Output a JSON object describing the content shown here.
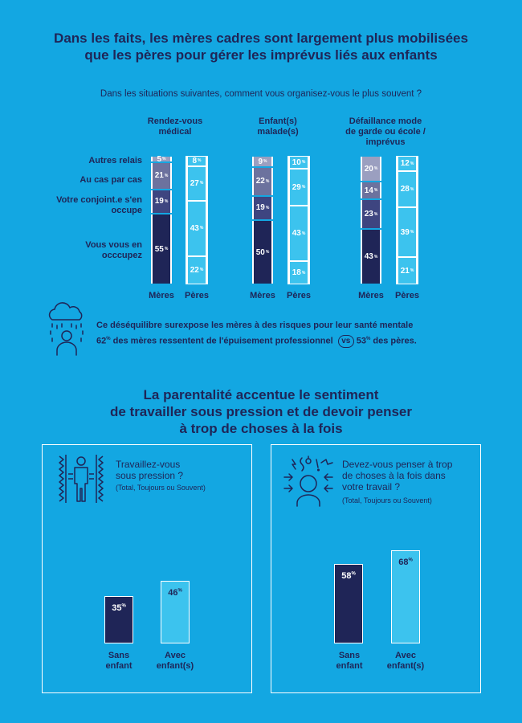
{
  "header": {
    "title_line1": "Dans les faits, les mères cadres sont largement plus mobilisées",
    "title_line2": "que les pères pour gérer les imprévus liés aux enfants",
    "subtitle": "Dans les situations suivantes, comment vous organisez-vous le plus souvent ?"
  },
  "colors": {
    "background": "#13a7e2",
    "navy": "#1f2557",
    "mothers_segments": [
      "#1f2557",
      "#3e4580",
      "#6c729e",
      "#9b9fc0"
    ],
    "fathers_segments": [
      "#3cc3ee",
      "#3cc3ee",
      "#3cc3ee",
      "#3cc3ee"
    ],
    "white": "#ffffff"
  },
  "chart_data": [
    {
      "type": "bar",
      "stacked": true,
      "row_labels": [
        "Autres relais",
        "Au cas par cas",
        "Votre conjoint.e s'en occupe",
        "Vous vous en occcupez"
      ],
      "groups": [
        {
          "title_line1": "Rendez-vous",
          "title_line2": "médical",
          "categories": [
            "Mères",
            "Pères"
          ],
          "series": [
            {
              "name": "Vous vous en occcupez",
              "values": [
                55,
                22
              ]
            },
            {
              "name": "Votre conjoint.e s'en occupe",
              "values": [
                19,
                43
              ]
            },
            {
              "name": "Au cas par cas",
              "values": [
                21,
                27
              ]
            },
            {
              "name": "Autres relais",
              "values": [
                5,
                8
              ]
            }
          ]
        },
        {
          "title_line1": "Enfant(s)",
          "title_line2": "malade(s)",
          "categories": [
            "Mères",
            "Pères"
          ],
          "series": [
            {
              "name": "Vous vous en occcupez",
              "values": [
                50,
                18
              ]
            },
            {
              "name": "Votre conjoint.e s'en occupe",
              "values": [
                19,
                43
              ]
            },
            {
              "name": "Au cas par cas",
              "values": [
                22,
                29
              ]
            },
            {
              "name": "Autres relais",
              "values": [
                9,
                10
              ]
            }
          ]
        },
        {
          "title_line1": "Défaillance mode",
          "title_line2": "de garde ou école /",
          "title_line3": "imprévus",
          "categories": [
            "Mères",
            "Pères"
          ],
          "series": [
            {
              "name": "Vous vous en occcupez",
              "values": [
                43,
                21
              ]
            },
            {
              "name": "Votre conjoint.e s'en occupe",
              "values": [
                23,
                39
              ]
            },
            {
              "name": "Au cas par cas",
              "values": [
                14,
                28
              ]
            },
            {
              "name": "Autres relais",
              "values": [
                20,
                12
              ]
            }
          ]
        }
      ],
      "unit": "%"
    },
    {
      "type": "bar",
      "question_line1": "Travaillez-vous",
      "question_line2": "sous pression ?",
      "note": "(Total, Toujours ou Souvent)",
      "categories": [
        "Sans enfant",
        "Avec enfant(s)"
      ],
      "category_lines": [
        [
          "Sans",
          "enfant"
        ],
        [
          "Avec",
          "enfant(s)"
        ]
      ],
      "values": [
        35,
        46
      ],
      "unit": "%"
    },
    {
      "type": "bar",
      "question_line1": "Devez-vous penser à trop",
      "question_line2": "de choses à la fois dans",
      "question_line3": "votre travail ?",
      "note": "(Total, Toujours ou Souvent)",
      "categories": [
        "Sans enfant",
        "Avec enfant(s)"
      ],
      "category_lines": [
        [
          "Sans",
          "enfant"
        ],
        [
          "Avec",
          "enfant(s)"
        ]
      ],
      "values": [
        58,
        68
      ],
      "unit": "%"
    }
  ],
  "insight": {
    "line1": "Ce déséquilibre surexpose les mères à des risques pour leur santé mentale",
    "mothers_value": "62",
    "pct": "%",
    "line2_mid": " des mères ressentent de l'épuisement professionnel ",
    "vs": "vs",
    "fathers_value": "53",
    "line2_end": " des pères."
  },
  "section2": {
    "title_line1": "La parentalité accentue le sentiment",
    "title_line2": "de travailler sous pression et de devoir penser",
    "title_line3": "à trop de choses à la fois"
  },
  "icons": [
    "rain-cloud-person-icon",
    "pressure-person-icon",
    "stressed-head-icon"
  ]
}
